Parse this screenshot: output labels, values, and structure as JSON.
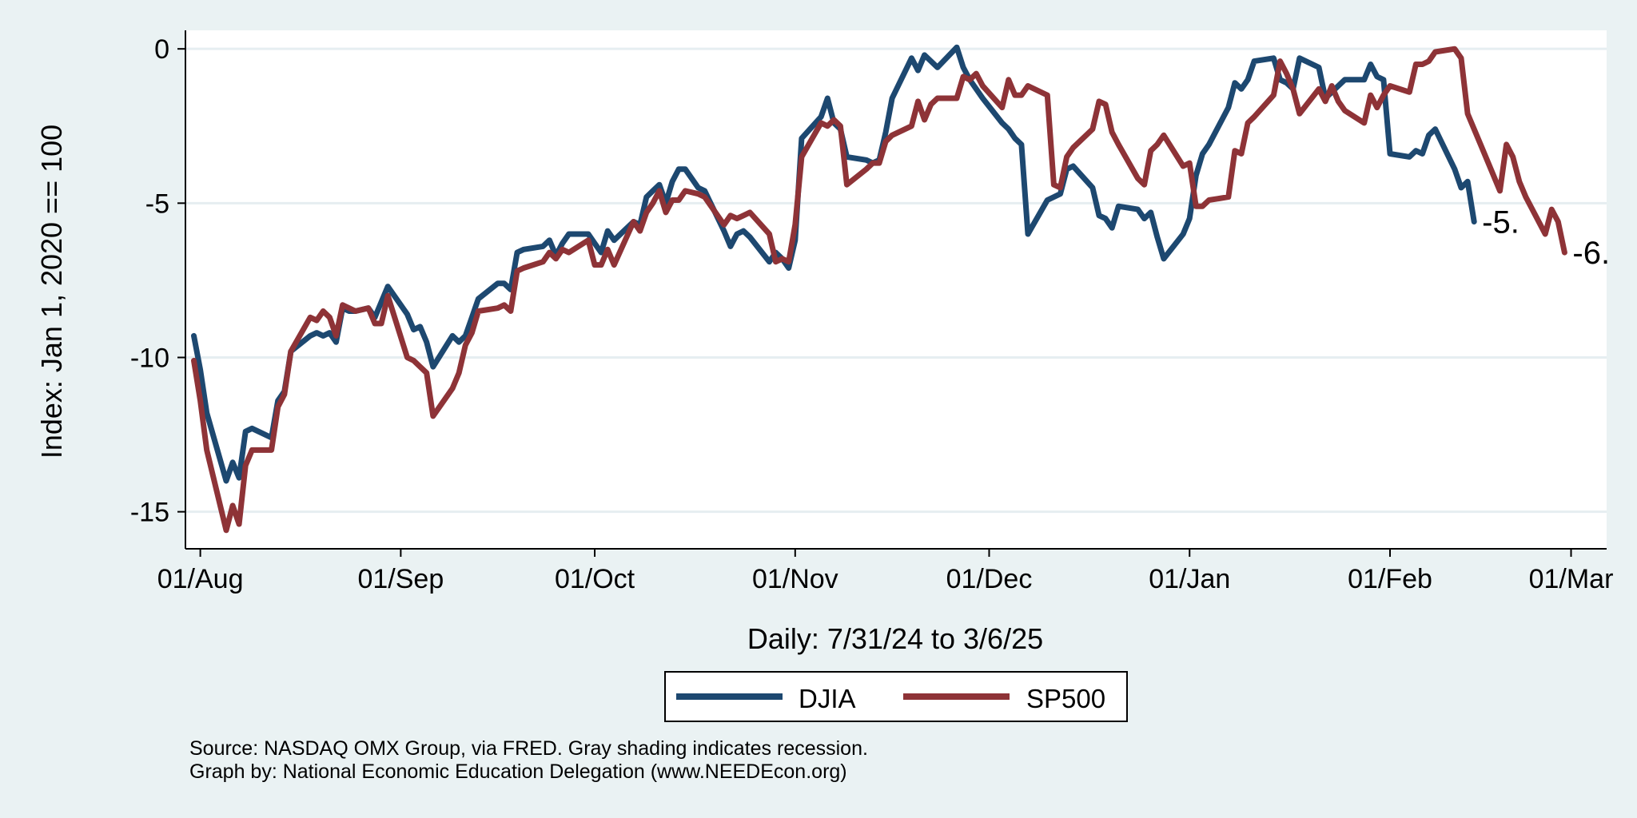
{
  "chart_data": {
    "type": "line",
    "title": "",
    "xlabel": "Daily: 7/31/24 to 3/6/25",
    "ylabel": "Index: Jan 1, 2020 == 100",
    "ylim": [
      -16.2,
      0.6
    ],
    "yticks": [
      0,
      -5,
      -10,
      -15
    ],
    "ytick_labels": [
      "0",
      "-5",
      "-10",
      "-15"
    ],
    "xlim": [
      -1.3,
      218.5
    ],
    "xticks": [
      1,
      32,
      62,
      93,
      123,
      154,
      185,
      213
    ],
    "xtick_labels": [
      "01/Aug",
      "01/Sep",
      "01/Oct",
      "01/Nov",
      "01/Dec",
      "01/Jan",
      "01/Feb",
      "01/Mar"
    ],
    "grid": true,
    "legend_position": "bottom",
    "series": [
      {
        "name": "DJIA",
        "color": "#1d4870",
        "end_label": "-5.",
        "points": [
          [
            0,
            -9.3
          ],
          [
            1,
            -10.4
          ],
          [
            2,
            -11.8
          ],
          [
            5,
            -14
          ],
          [
            6,
            -13.4
          ],
          [
            7,
            -13.9
          ],
          [
            8,
            -12.4
          ],
          [
            9,
            -12.3
          ],
          [
            12,
            -12.6
          ],
          [
            13,
            -11.4
          ],
          [
            14,
            -11.1
          ],
          [
            15,
            -9.8
          ],
          [
            18,
            -9.3
          ],
          [
            19,
            -9.2
          ],
          [
            20,
            -9.3
          ],
          [
            21,
            -9.2
          ],
          [
            22,
            -9.5
          ],
          [
            23,
            -8.4
          ],
          [
            24,
            -8.5
          ],
          [
            25,
            -8.5
          ],
          [
            27,
            -8.4
          ],
          [
            28,
            -8.7
          ],
          [
            29,
            -8.2
          ],
          [
            30,
            -7.7
          ],
          [
            33,
            -8.6
          ],
          [
            34,
            -9.1
          ],
          [
            35,
            -9
          ],
          [
            36,
            -9.5
          ],
          [
            37,
            -10.3
          ],
          [
            40,
            -9.3
          ],
          [
            41,
            -9.5
          ],
          [
            42,
            -9.3
          ],
          [
            43,
            -8.7
          ],
          [
            44,
            -8.1
          ],
          [
            47,
            -7.6
          ],
          [
            48,
            -7.6
          ],
          [
            49,
            -7.8
          ],
          [
            50,
            -6.6
          ],
          [
            51,
            -6.5
          ],
          [
            54,
            -6.4
          ],
          [
            55,
            -6.2
          ],
          [
            56,
            -6.7
          ],
          [
            57,
            -6.3
          ],
          [
            58,
            -6
          ],
          [
            61,
            -6
          ],
          [
            62,
            -6.3
          ],
          [
            63,
            -6.6
          ],
          [
            64,
            -5.9
          ],
          [
            65,
            -6.2
          ],
          [
            68,
            -5.6
          ],
          [
            69,
            -5.7
          ],
          [
            70,
            -4.8
          ],
          [
            71,
            -4.6
          ],
          [
            72,
            -4.4
          ],
          [
            73,
            -5
          ],
          [
            74,
            -4.3
          ],
          [
            75,
            -3.9
          ],
          [
            76,
            -3.9
          ],
          [
            78,
            -4.5
          ],
          [
            79,
            -4.6
          ],
          [
            82,
            -5.9
          ],
          [
            83,
            -6.4
          ],
          [
            84,
            -6
          ],
          [
            85,
            -5.9
          ],
          [
            86,
            -6.1
          ],
          [
            89,
            -6.9
          ],
          [
            90,
            -6.6
          ],
          [
            91,
            -6.8
          ],
          [
            92,
            -7.1
          ],
          [
            93,
            -6.2
          ],
          [
            94,
            -2.9
          ],
          [
            97,
            -2.2
          ],
          [
            98,
            -1.6
          ],
          [
            99,
            -2.4
          ],
          [
            100,
            -2.6
          ],
          [
            101,
            -3.5
          ],
          [
            104,
            -3.6
          ],
          [
            105,
            -3.7
          ],
          [
            106,
            -3.6
          ],
          [
            107,
            -2.7
          ],
          [
            108,
            -1.6
          ],
          [
            111,
            -0.3
          ],
          [
            112,
            -0.7
          ],
          [
            113,
            -0.2
          ],
          [
            114,
            -0.4
          ],
          [
            115,
            -0.6
          ],
          [
            118,
            0.05
          ],
          [
            119,
            -0.6
          ],
          [
            120,
            -1
          ],
          [
            121,
            -1.3
          ],
          [
            122,
            -1.6
          ],
          [
            125,
            -2.4
          ],
          [
            126,
            -2.6
          ],
          [
            127,
            -2.9
          ],
          [
            128,
            -3.1
          ],
          [
            129,
            -6
          ],
          [
            132,
            -4.9
          ],
          [
            133,
            -4.8
          ],
          [
            134,
            -4.7
          ],
          [
            135,
            -3.9
          ],
          [
            136,
            -3.8
          ],
          [
            139,
            -4.5
          ],
          [
            140,
            -5.4
          ],
          [
            141,
            -5.5
          ],
          [
            142,
            -5.8
          ],
          [
            143,
            -5.1
          ],
          [
            146,
            -5.2
          ],
          [
            147,
            -5.5
          ],
          [
            148,
            -5.3
          ],
          [
            149,
            -6.1
          ],
          [
            150,
            -6.8
          ],
          [
            153,
            -6
          ],
          [
            154,
            -5.5
          ],
          [
            155,
            -4.1
          ],
          [
            156,
            -3.4
          ],
          [
            157,
            -3.1
          ],
          [
            160,
            -1.9
          ],
          [
            161,
            -1.1
          ],
          [
            162,
            -1.3
          ],
          [
            163,
            -1
          ],
          [
            164,
            -0.4
          ],
          [
            167,
            -0.3
          ],
          [
            168,
            -1
          ],
          [
            169,
            -1.1
          ],
          [
            170,
            -1.3
          ],
          [
            171,
            -0.3
          ],
          [
            174,
            -0.6
          ],
          [
            175,
            -1.6
          ],
          [
            176,
            -1.4
          ],
          [
            177,
            -1.2
          ],
          [
            178,
            -1
          ],
          [
            181,
            -1
          ],
          [
            182,
            -0.5
          ],
          [
            183,
            -0.9
          ],
          [
            184,
            -1
          ],
          [
            185,
            -3.4
          ],
          [
            188,
            -3.5
          ],
          [
            189,
            -3.3
          ],
          [
            190,
            -3.4
          ],
          [
            191,
            -2.8
          ],
          [
            192,
            -2.6
          ],
          [
            195,
            -3.9
          ],
          [
            196,
            -4.5
          ],
          [
            197,
            -4.3
          ],
          [
            198,
            -5.6
          ]
        ]
      },
      {
        "name": "SP500",
        "color": "#8e3337",
        "end_label": "-6.",
        "points": [
          [
            0,
            -10.1
          ],
          [
            1,
            -11.4
          ],
          [
            2,
            -13
          ],
          [
            5,
            -15.6
          ],
          [
            6,
            -14.8
          ],
          [
            7,
            -15.4
          ],
          [
            8,
            -13.5
          ],
          [
            9,
            -13
          ],
          [
            12,
            -13
          ],
          [
            13,
            -11.6
          ],
          [
            14,
            -11.2
          ],
          [
            15,
            -9.8
          ],
          [
            18,
            -8.7
          ],
          [
            19,
            -8.8
          ],
          [
            20,
            -8.5
          ],
          [
            21,
            -8.7
          ],
          [
            22,
            -9.3
          ],
          [
            23,
            -8.3
          ],
          [
            24,
            -8.4
          ],
          [
            25,
            -8.5
          ],
          [
            27,
            -8.4
          ],
          [
            28,
            -8.9
          ],
          [
            29,
            -8.9
          ],
          [
            30,
            -8
          ],
          [
            33,
            -10
          ],
          [
            34,
            -10.1
          ],
          [
            35,
            -10.3
          ],
          [
            36,
            -10.5
          ],
          [
            37,
            -11.9
          ],
          [
            40,
            -11
          ],
          [
            41,
            -10.5
          ],
          [
            42,
            -9.6
          ],
          [
            43,
            -9.2
          ],
          [
            44,
            -8.5
          ],
          [
            47,
            -8.4
          ],
          [
            48,
            -8.3
          ],
          [
            49,
            -8.5
          ],
          [
            50,
            -7.2
          ],
          [
            51,
            -7.1
          ],
          [
            54,
            -6.9
          ],
          [
            55,
            -6.6
          ],
          [
            56,
            -6.8
          ],
          [
            57,
            -6.5
          ],
          [
            58,
            -6.6
          ],
          [
            61,
            -6.2
          ],
          [
            62,
            -7
          ],
          [
            63,
            -7
          ],
          [
            64,
            -6.5
          ],
          [
            65,
            -7
          ],
          [
            68,
            -5.6
          ],
          [
            69,
            -5.9
          ],
          [
            70,
            -5.3
          ],
          [
            71,
            -5
          ],
          [
            72,
            -4.6
          ],
          [
            73,
            -5.3
          ],
          [
            74,
            -4.9
          ],
          [
            75,
            -4.9
          ],
          [
            76,
            -4.6
          ],
          [
            78,
            -4.7
          ],
          [
            79,
            -4.8
          ],
          [
            82,
            -5.7
          ],
          [
            83,
            -5.4
          ],
          [
            84,
            -5.5
          ],
          [
            85,
            -5.4
          ],
          [
            86,
            -5.3
          ],
          [
            89,
            -6
          ],
          [
            90,
            -6.9
          ],
          [
            91,
            -6.8
          ],
          [
            92,
            -6.9
          ],
          [
            93,
            -5.7
          ],
          [
            94,
            -3.5
          ],
          [
            97,
            -2.4
          ],
          [
            98,
            -2.5
          ],
          [
            99,
            -2.3
          ],
          [
            100,
            -2.5
          ],
          [
            101,
            -4.4
          ],
          [
            104,
            -3.9
          ],
          [
            105,
            -3.7
          ],
          [
            106,
            -3.7
          ],
          [
            107,
            -3
          ],
          [
            108,
            -2.8
          ],
          [
            111,
            -2.5
          ],
          [
            112,
            -1.7
          ],
          [
            113,
            -2.3
          ],
          [
            114,
            -1.8
          ],
          [
            115,
            -1.6
          ],
          [
            118,
            -1.6
          ],
          [
            119,
            -0.9
          ],
          [
            120,
            -1
          ],
          [
            121,
            -0.8
          ],
          [
            122,
            -1.2
          ],
          [
            125,
            -1.9
          ],
          [
            126,
            -1
          ],
          [
            127,
            -1.5
          ],
          [
            128,
            -1.5
          ],
          [
            129,
            -1.2
          ],
          [
            132,
            -1.5
          ],
          [
            133,
            -4.4
          ],
          [
            134,
            -4.5
          ],
          [
            135,
            -3.5
          ],
          [
            136,
            -3.2
          ],
          [
            139,
            -2.6
          ],
          [
            140,
            -1.7
          ],
          [
            141,
            -1.8
          ],
          [
            142,
            -2.7
          ],
          [
            143,
            -3.1
          ],
          [
            146,
            -4.2
          ],
          [
            147,
            -4.4
          ],
          [
            148,
            -3.3
          ],
          [
            149,
            -3.1
          ],
          [
            150,
            -2.8
          ],
          [
            153,
            -3.8
          ],
          [
            154,
            -3.7
          ],
          [
            155,
            -5.1
          ],
          [
            156,
            -5.1
          ],
          [
            157,
            -4.9
          ],
          [
            160,
            -4.8
          ],
          [
            161,
            -3.3
          ],
          [
            162,
            -3.4
          ],
          [
            163,
            -2.4
          ],
          [
            164,
            -2.2
          ],
          [
            167,
            -1.5
          ],
          [
            168,
            -0.4
          ],
          [
            169,
            -0.8
          ],
          [
            170,
            -1.3
          ],
          [
            171,
            -2.1
          ],
          [
            174,
            -1.3
          ],
          [
            175,
            -1.7
          ],
          [
            176,
            -1.2
          ],
          [
            177,
            -1.7
          ],
          [
            178,
            -2
          ],
          [
            181,
            -2.4
          ],
          [
            182,
            -1.5
          ],
          [
            183,
            -1.9
          ],
          [
            184,
            -1.5
          ],
          [
            185,
            -1.2
          ],
          [
            188,
            -1.4
          ],
          [
            189,
            -0.5
          ],
          [
            190,
            -0.5
          ],
          [
            191,
            -0.4
          ],
          [
            192,
            -0.1
          ],
          [
            195,
            0
          ],
          [
            196,
            -0.3
          ],
          [
            197,
            -2.1
          ],
          [
            198,
            -2.6
          ],
          [
            199,
            -3.1
          ],
          [
            202,
            -4.6
          ],
          [
            203,
            -3.1
          ],
          [
            204,
            -3.5
          ],
          [
            205,
            -4.3
          ],
          [
            206,
            -4.8
          ],
          [
            209,
            -6
          ],
          [
            210,
            -5.2
          ],
          [
            211,
            -5.6
          ],
          [
            212,
            -6.6
          ]
        ]
      }
    ],
    "notes": [
      "Source: NASDAQ OMX Group, via FRED. Gray shading indicates recession.",
      "Graph by: National Economic Education Delegation (www.NEEDEcon.org)"
    ]
  }
}
